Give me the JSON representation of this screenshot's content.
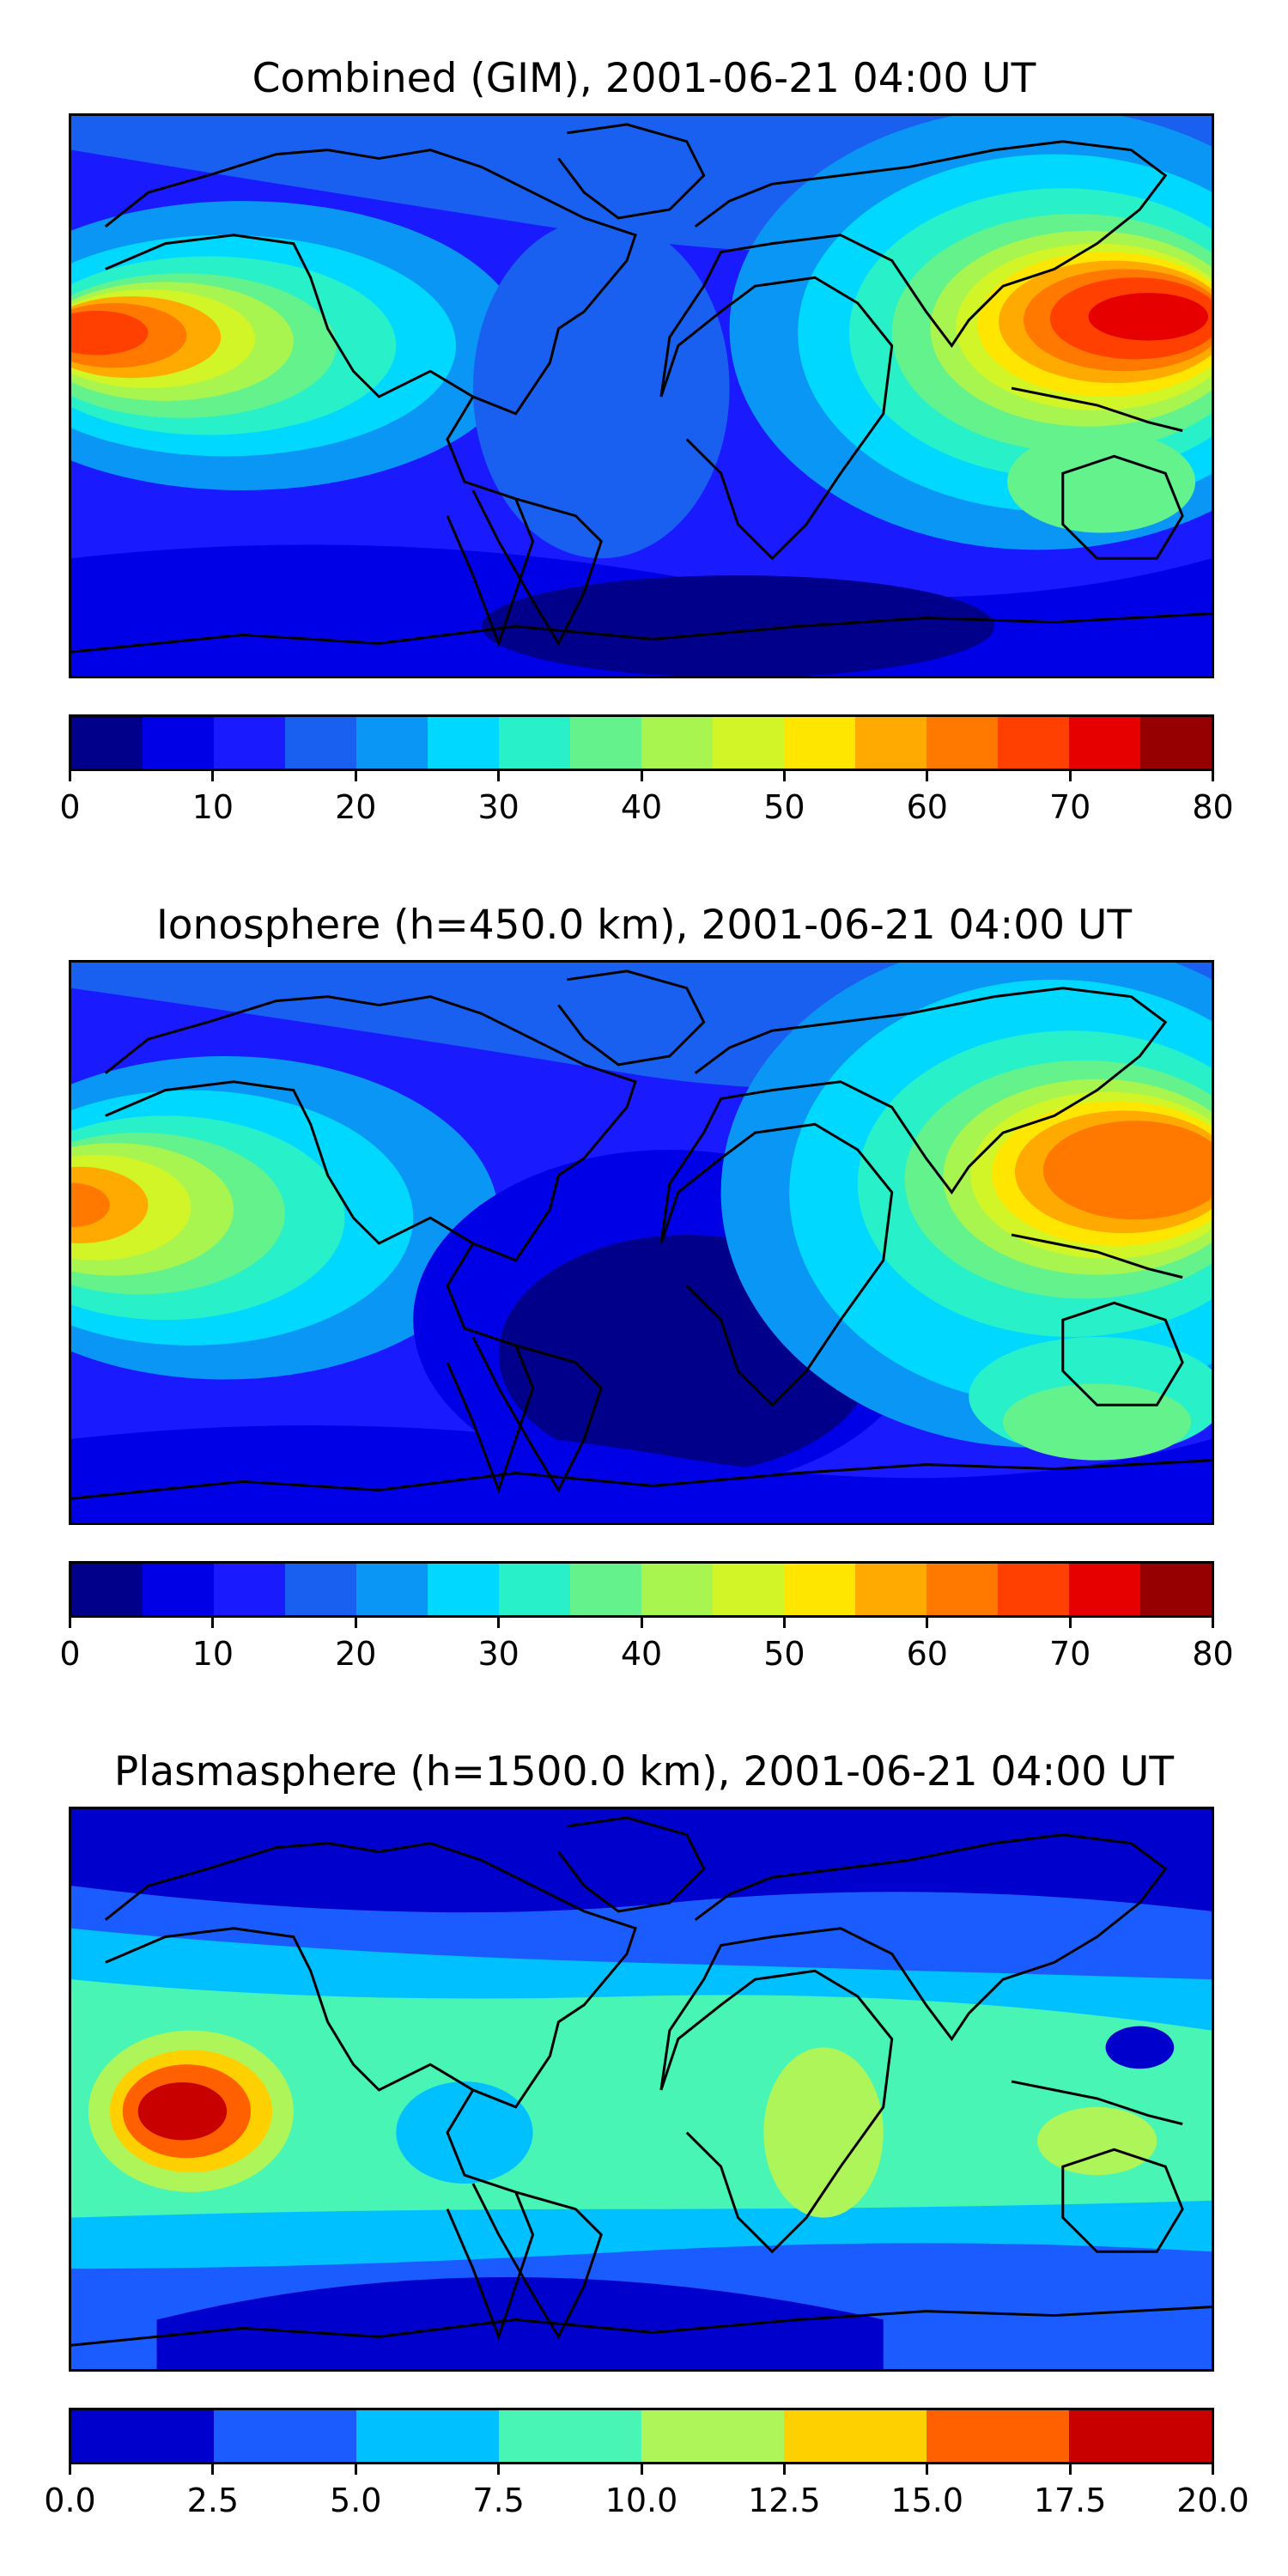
{
  "panels": [
    {
      "title": "Combined (GIM), 2001-06-21 04:00 UT",
      "colorbar": {
        "colors": [
          "#00008b",
          "#0000e6",
          "#1a1aff",
          "#1a60f0",
          "#0a96f5",
          "#00d8ff",
          "#28f0c8",
          "#64f28c",
          "#a8f550",
          "#d2f528",
          "#ffe600",
          "#ffaa00",
          "#ff7800",
          "#ff4000",
          "#e60000",
          "#960000"
        ],
        "ticks": [
          "0",
          "10",
          "20",
          "30",
          "40",
          "50",
          "60",
          "70",
          "80"
        ]
      }
    },
    {
      "title": "Ionosphere  (h=450.0 km), 2001-06-21 04:00 UT",
      "colorbar": {
        "colors": [
          "#00008b",
          "#0000e6",
          "#1a1aff",
          "#1a60f0",
          "#0a96f5",
          "#00d8ff",
          "#28f0c8",
          "#64f28c",
          "#a8f550",
          "#d2f528",
          "#ffe600",
          "#ffaa00",
          "#ff7800",
          "#ff4000",
          "#e60000",
          "#960000"
        ],
        "ticks": [
          "0",
          "10",
          "20",
          "30",
          "40",
          "50",
          "60",
          "70",
          "80"
        ]
      }
    },
    {
      "title": "Plasmasphere (h=1500.0 km), 2001-06-21 04:00 UT",
      "colorbar": {
        "colors": [
          "#0000cd",
          "#1a5cff",
          "#00c0ff",
          "#48f5b4",
          "#aef55a",
          "#ffd000",
          "#ff6000",
          "#c80000"
        ],
        "ticks": [
          "0.0",
          "2.5",
          "5.0",
          "7.5",
          "10.0",
          "12.5",
          "15.0",
          "17.5",
          "20.0"
        ]
      }
    }
  ]
}
